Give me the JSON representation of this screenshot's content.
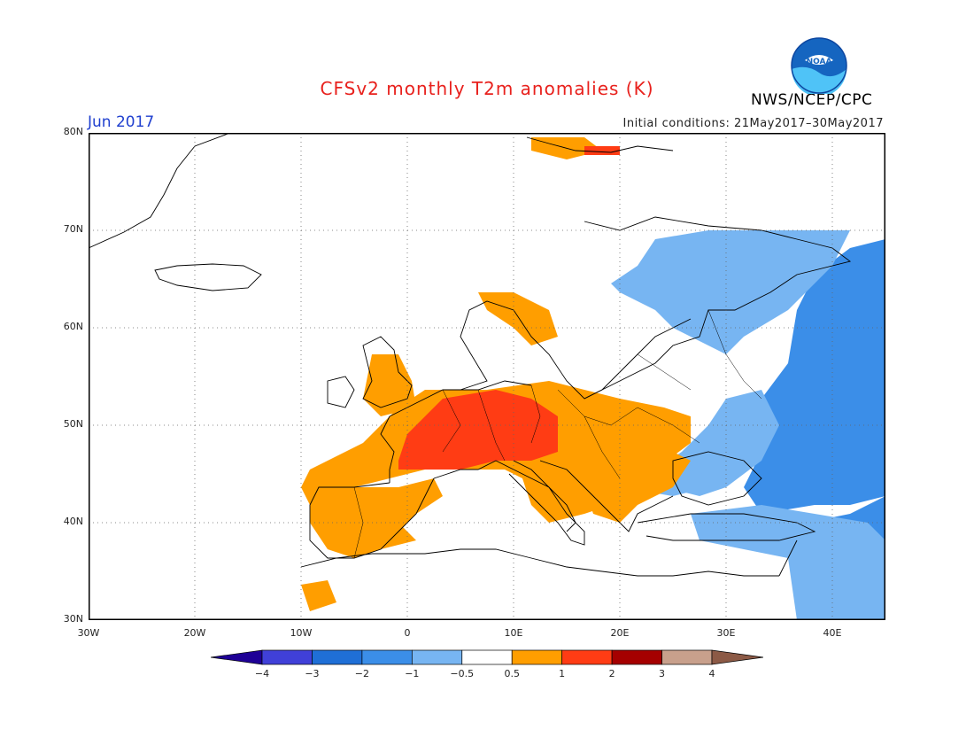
{
  "header": {
    "title": "CFSv2 monthly T2m anomalies (K)",
    "month": "Jun 2017",
    "initial_conditions": "Initial conditions: 21May2017–30May2017",
    "organization": "NWS/NCEP/CPC",
    "logo_text": "NOAA"
  },
  "axes": {
    "lat_labels": [
      "80N",
      "70N",
      "60N",
      "50N",
      "40N",
      "30N"
    ],
    "lon_labels": [
      "30W",
      "20W",
      "10W",
      "0",
      "10E",
      "20E",
      "30E",
      "40E"
    ]
  },
  "legend": {
    "tick_labels": [
      "−4",
      "−3",
      "−2",
      "−1",
      "−0.5",
      "0.5",
      "1",
      "2",
      "3",
      "4"
    ],
    "colors": [
      "#1e0096",
      "#4040d8",
      "#1f6fd6",
      "#3b8ee8",
      "#77b5f2",
      "#ffffff",
      "#ff9e00",
      "#ff3c14",
      "#a50000",
      "#c8a08c",
      "#8c5a46"
    ]
  },
  "map_data": {
    "lon_range": [
      -30,
      45
    ],
    "lat_range": [
      30,
      80
    ],
    "features": [
      {
        "region": "Central Europe (France, Germany, Switzerland)",
        "anomaly_class": "1 to 2 K"
      },
      {
        "region": "Iberia, UK, Alps, Balkans, Poland",
        "anomaly_class": "0.5 to 1 K"
      },
      {
        "region": "Western Russia, Ukraine, Turkey",
        "anomaly_class": "-2 to -1 K"
      },
      {
        "region": "Finland, Baltic, Black Sea",
        "anomaly_class": "-1 to -0.5 K"
      },
      {
        "region": "Svalbard",
        "anomaly_class": "0.5 to 2 K"
      }
    ]
  }
}
